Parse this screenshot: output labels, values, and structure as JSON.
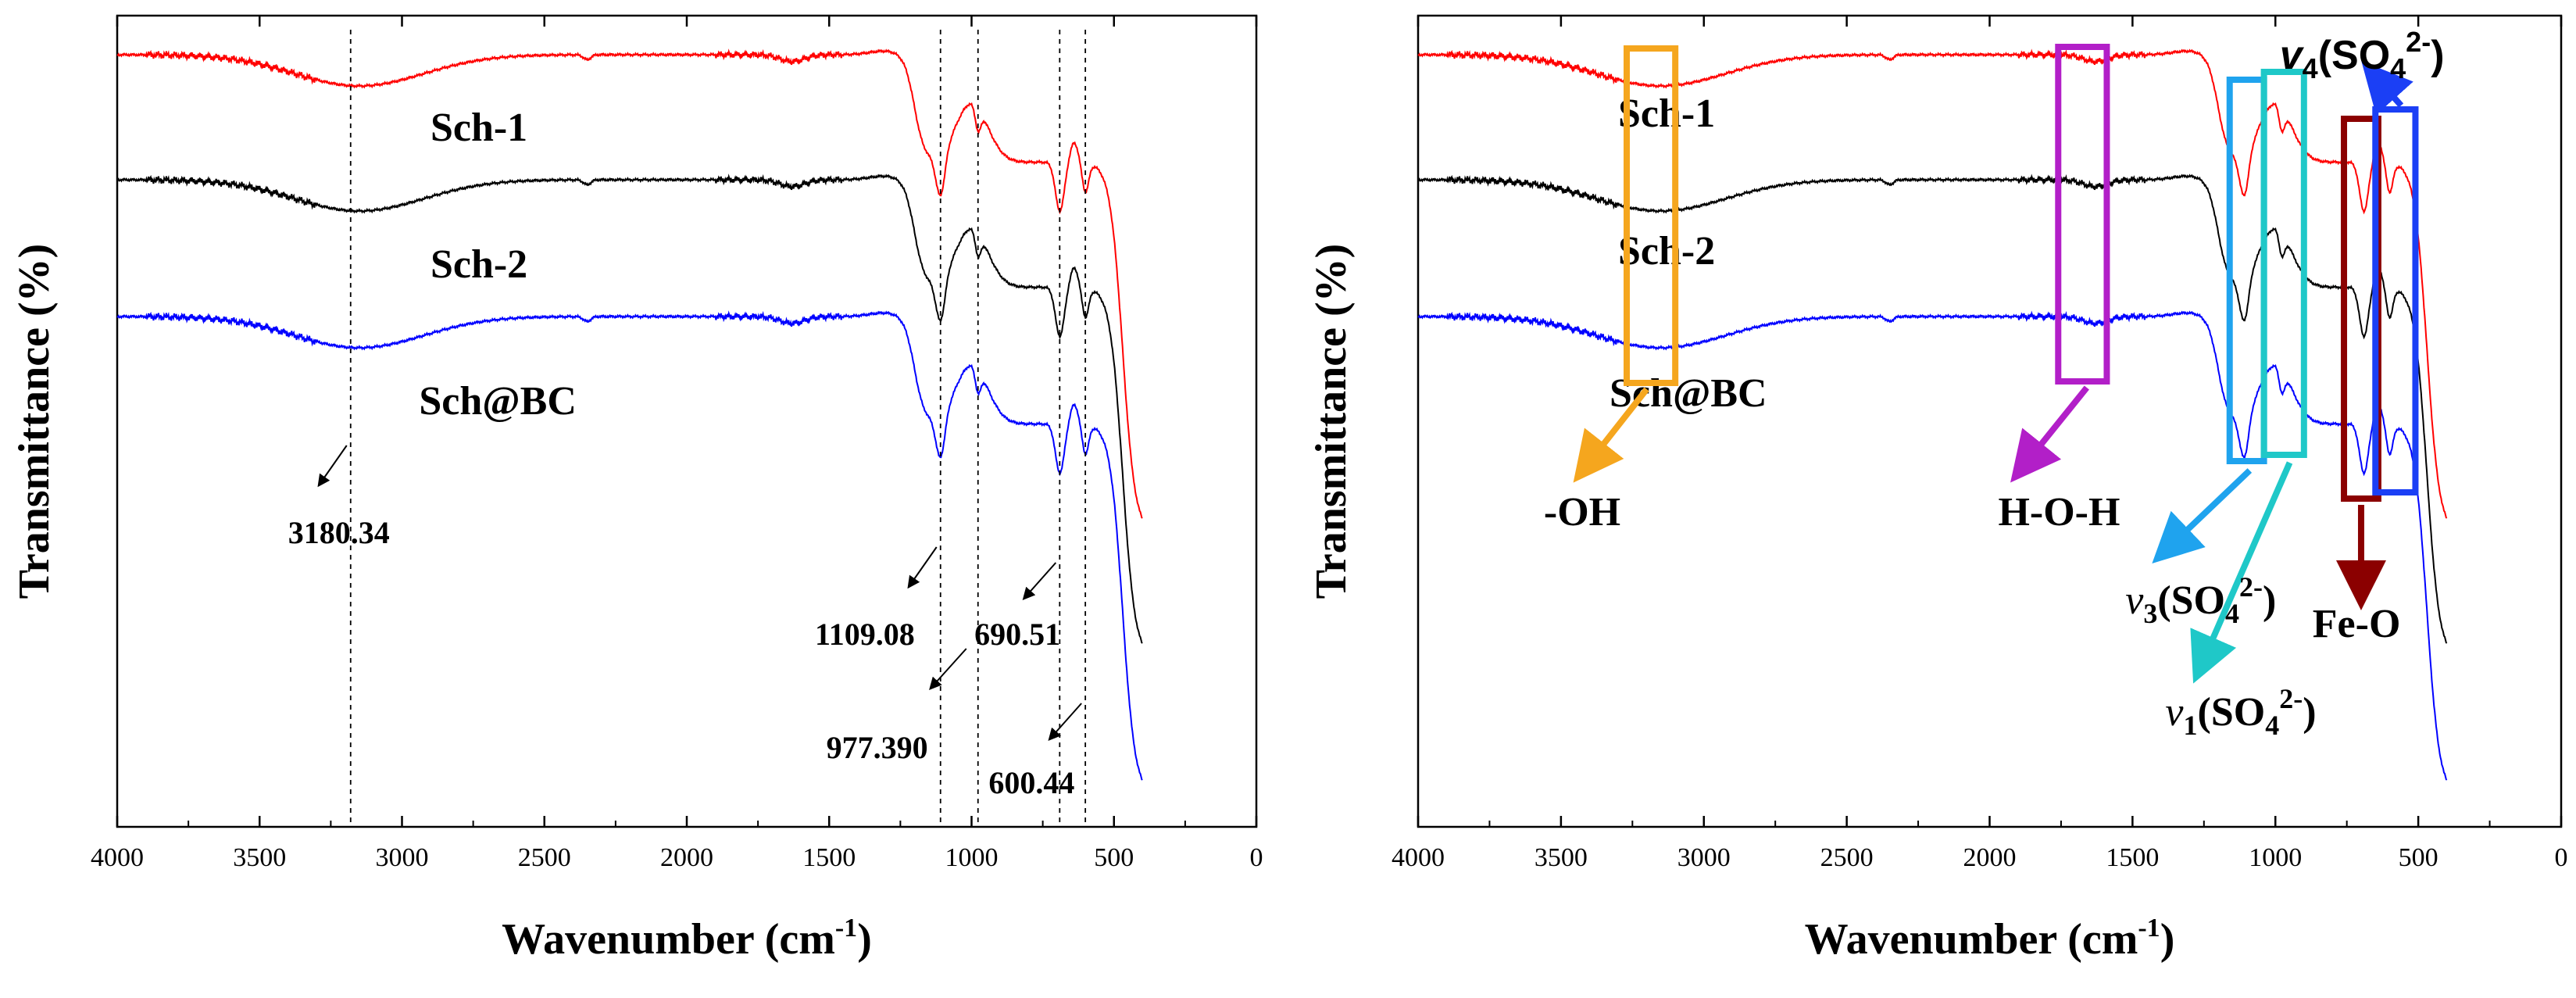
{
  "chart_data": [
    {
      "type": "line",
      "panel": "left",
      "xlabel": "Wavenumber (cm⁻¹)",
      "xlabel_main": "Wavenumber (cm",
      "xlabel_sup": "-1",
      "xlabel_close": ")",
      "ylabel": "Transmittance (%)",
      "xlim": [
        4000,
        0
      ],
      "x_ticks": [
        4000,
        3500,
        3000,
        2500,
        2000,
        1500,
        1000,
        500,
        0
      ],
      "x_tick_labels": [
        "4000",
        "3500",
        "3000",
        "2500",
        "2000",
        "1500",
        "1000",
        "500",
        "0"
      ],
      "y_ticks": "none",
      "legend": "inline labels",
      "series": [
        {
          "name": "Sch-1",
          "color": "#ff0000",
          "offset": 0
        },
        {
          "name": "Sch-2",
          "color": "#000000",
          "offset": 1
        },
        {
          "name": "Sch@BC",
          "color": "#0000ff",
          "offset": 2
        }
      ],
      "reference_lines": [
        3180.34,
        1109.08,
        977.39,
        690.51,
        600.44
      ],
      "annotations": [
        {
          "text": "3180.34",
          "x": 3180.34
        },
        {
          "text": "1109.08",
          "x": 1109.08
        },
        {
          "text": "977.390",
          "x": 977.39
        },
        {
          "text": "690.51",
          "x": 690.51
        },
        {
          "text": "600.44",
          "x": 600.44
        }
      ]
    },
    {
      "type": "line",
      "panel": "right",
      "xlabel": "Wavenumber (cm⁻¹)",
      "xlabel_main": "Wavenumber (cm",
      "xlabel_sup": "-1",
      "xlabel_close": ")",
      "ylabel": "Transmittance (%)",
      "xlim": [
        4000,
        0
      ],
      "x_ticks": [
        4000,
        3500,
        3000,
        2500,
        2000,
        1500,
        1000,
        500,
        0
      ],
      "x_tick_labels": [
        "4000",
        "3500",
        "3000",
        "2500",
        "2000",
        "1500",
        "1000",
        "500",
        "0"
      ],
      "y_ticks": "none",
      "legend": "inline labels",
      "series": [
        {
          "name": "Sch-1",
          "color": "#ff0000",
          "offset": 0
        },
        {
          "name": "Sch-2",
          "color": "#000000",
          "offset": 1
        },
        {
          "name": "Sch@BC",
          "color": "#0000ff",
          "offset": 2
        }
      ],
      "highlight_bands": [
        {
          "label": "-OH",
          "x_range": [
            3270,
            3100
          ],
          "color": "#f5a61e"
        },
        {
          "label": "H-O-H",
          "x_range": [
            1760,
            1590
          ],
          "color": "#b21fc8"
        },
        {
          "label": "v3(SO4 2-)",
          "label_parts": {
            "main": "v",
            "sub": "3",
            "open": "(SO",
            "sub2": "4",
            "sup": "2-",
            "close": ")"
          },
          "x_range": [
            1160,
            1040
          ],
          "color": "#1fa3ee"
        },
        {
          "label": "v1(SO4 2-)",
          "label_parts": {
            "main": "v",
            "sub": "1",
            "open": "(SO",
            "sub2": "4",
            "sup": "2-",
            "close": ")"
          },
          "x_range": [
            1040,
            900
          ],
          "color": "#1fc8c8"
        },
        {
          "label": "Fe-O",
          "x_range": [
            760,
            640
          ],
          "color": "#8b0000"
        },
        {
          "label": "v4(SO4 2-)",
          "label_parts": {
            "main": "v",
            "sub": "4",
            "open": "(SO",
            "sub2": "4",
            "sup": "2-",
            "close": ")"
          },
          "x_range": [
            650,
            510
          ],
          "color": "#1b3ff5"
        }
      ]
    }
  ]
}
